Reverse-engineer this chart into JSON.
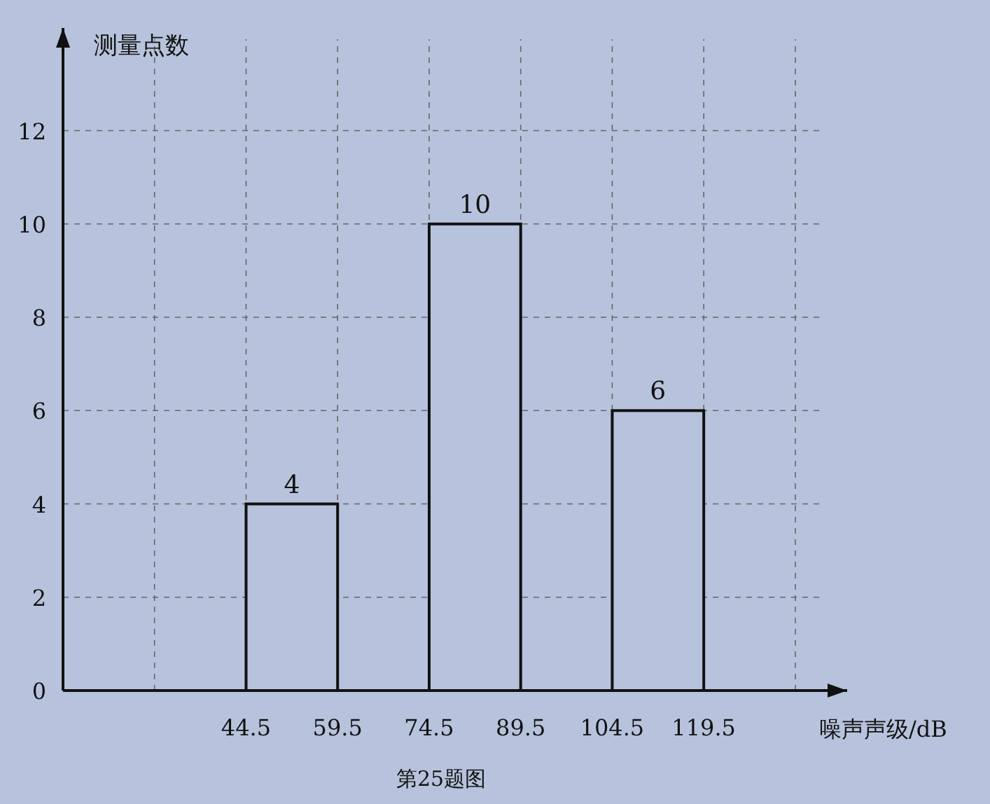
{
  "chart_data": {
    "type": "histogram",
    "xlabel": "噪声声级/dB",
    "ylabel": "测量点数",
    "annotations": [
      "第25题图"
    ],
    "bins": [
      44.5,
      59.5,
      74.5,
      89.5,
      104.5,
      119.5
    ],
    "values": [
      4,
      0,
      10,
      0,
      6
    ],
    "value_labels": [
      "4",
      null,
      "10",
      null,
      "6"
    ],
    "color": "#b7c3dc",
    "xlim": [
      14.5,
      143
    ],
    "xticks": [
      {
        "value": 29.5,
        "label": null
      },
      44.5,
      59.5,
      74.5,
      89.5,
      104.5,
      119.5,
      {
        "value": 134.5,
        "label": null
      }
    ],
    "ylim": [
      0,
      14.2
    ],
    "yticks": [
      0,
      2,
      4,
      6,
      8,
      10,
      12
    ],
    "grid": true
  }
}
